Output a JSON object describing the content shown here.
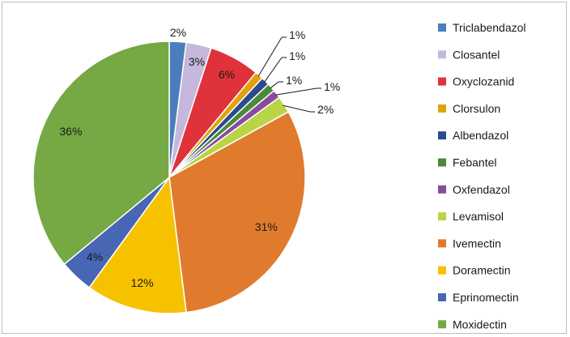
{
  "chart_data": {
    "type": "pie",
    "title": "",
    "legend_position": "right",
    "slices": [
      {
        "label": "Triclabendazol",
        "value": 2,
        "display": "2%",
        "color": "#4a7ebb"
      },
      {
        "label": "Closantel",
        "value": 3,
        "display": "3%",
        "color": "#c5b8dc"
      },
      {
        "label": "Oxyclozanid",
        "value": 6,
        "display": "6%",
        "color": "#e0323a"
      },
      {
        "label": "Clorsulon",
        "value": 1,
        "display": "1%",
        "color": "#e2a20c"
      },
      {
        "label": "Albendazol",
        "value": 1,
        "display": "1%",
        "color": "#2b4b8c"
      },
      {
        "label": "Febantel",
        "value": 1,
        "display": "1%",
        "color": "#4a8a3c"
      },
      {
        "label": "Oxfendazol",
        "value": 1,
        "display": "1%",
        "color": "#8a4b9e"
      },
      {
        "label": "Levamisol",
        "value": 2,
        "display": "2%",
        "color": "#b9d444"
      },
      {
        "label": "Ivemectin",
        "value": 31,
        "display": "31%",
        "color": "#e07b2e"
      },
      {
        "label": "Doramectin",
        "value": 12,
        "display": "12%",
        "color": "#f6c200"
      },
      {
        "label": "Eprinomectin",
        "value": 4,
        "display": "4%",
        "color": "#4766b3"
      },
      {
        "label": "Moxidectin",
        "value": 36,
        "display": "36%",
        "color": "#76a844"
      }
    ]
  }
}
